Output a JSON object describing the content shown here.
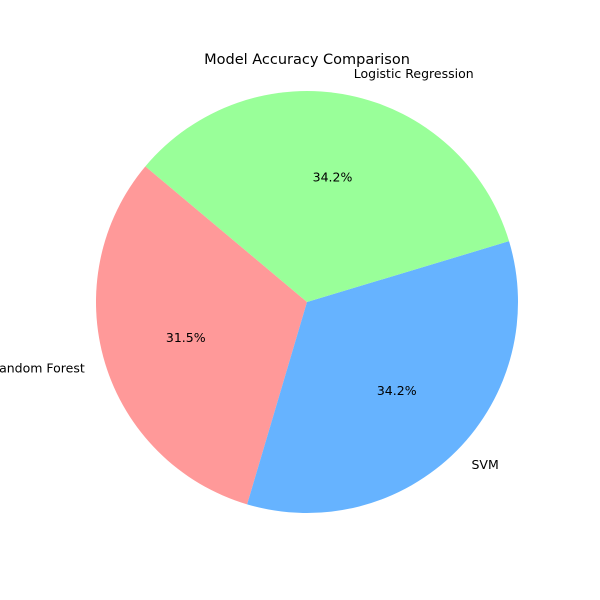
{
  "chart_data": {
    "type": "pie",
    "title": "Model Accuracy Comparison",
    "labels": [
      "Random Forest",
      "SVM",
      "Logistic Regression"
    ],
    "percentages": [
      31.5,
      34.2,
      34.2
    ],
    "colors": [
      "#ff9999",
      "#66b3ff",
      "#99ff99"
    ],
    "autopct_format": "%.1f%%",
    "start_angle_degrees": 140,
    "direction": "counterclockwise",
    "legend": "none"
  }
}
